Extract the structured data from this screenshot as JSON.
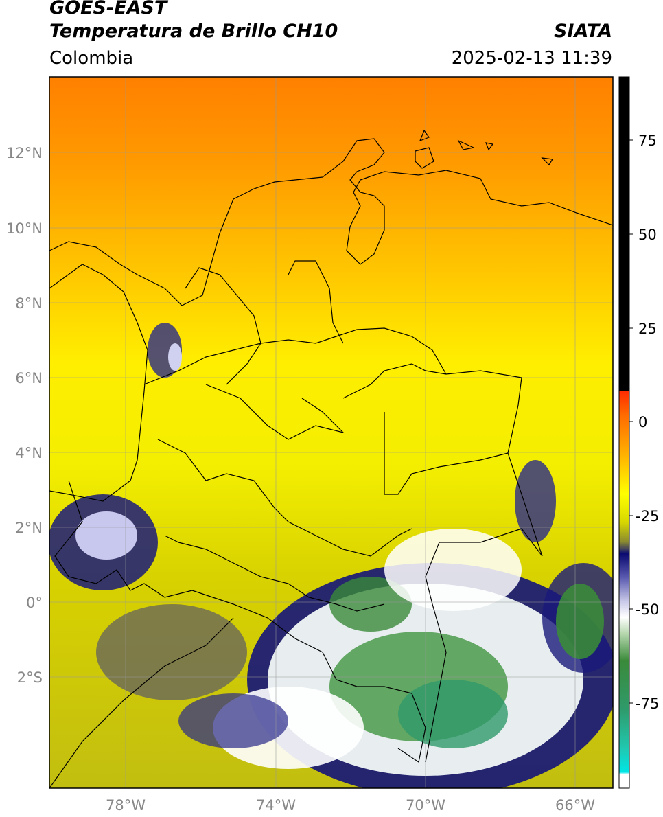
{
  "header": {
    "satellite": "GOES-EAST",
    "product": "Temperatura de Brillo CH10",
    "agency": "SIATA",
    "region": "Colombia",
    "datetime": "2025-02-13 11:39"
  },
  "map": {
    "lat_labels": [
      "12°N",
      "10°N",
      "8°N",
      "6°N",
      "4°N",
      "2°N",
      "0°",
      "2°S"
    ],
    "lon_labels": [
      "78°W",
      "74°W",
      "70°W",
      "66°W"
    ]
  },
  "colorbar": {
    "ticks": [
      "75",
      "50",
      "25",
      "0",
      "-25",
      "-50",
      "-75"
    ],
    "colors": {
      "warm_top": "#000000",
      "red": "#ff2a00",
      "orange": "#ff8c00",
      "yellow": "#ffff00",
      "olive": "#b4b400",
      "navy": "#1a1a7a",
      "white": "#ffffff",
      "green": "#2e8b3a",
      "teal": "#20c0a0",
      "cyan": "#00e0e0"
    }
  }
}
